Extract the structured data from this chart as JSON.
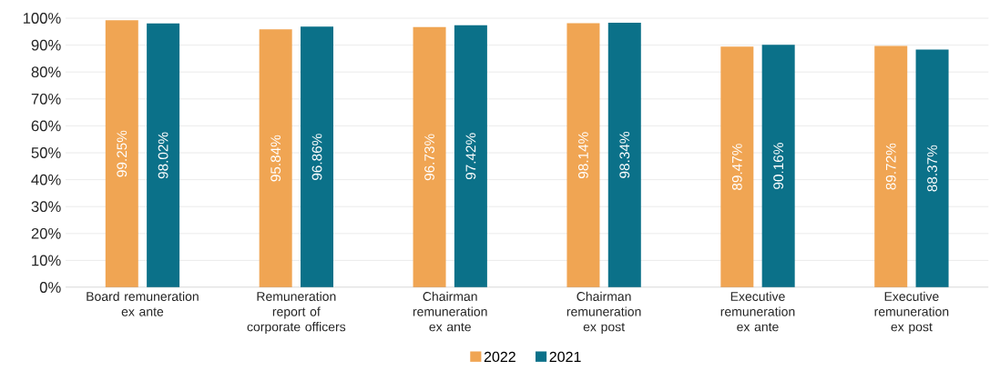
{
  "chart_data": {
    "type": "bar",
    "categories": [
      "Board remuneration ex ante",
      "Remuneration report of corporate officers",
      "Chairman remuneration ex ante",
      "Chairman remuneration ex post",
      "Executive remuneration ex ante",
      "Executive remuneration ex post"
    ],
    "series": [
      {
        "name": "2022",
        "color": "#f0a553",
        "values": [
          99.25,
          95.84,
          96.73,
          98.14,
          89.47,
          89.72
        ],
        "value_labels": [
          "99.25%",
          "95.84%",
          "96.73%",
          "98.14%",
          "89.47%",
          "89.72%"
        ]
      },
      {
        "name": "2021",
        "color": "#0b7189",
        "values": [
          98.02,
          96.86,
          97.42,
          98.34,
          90.16,
          88.37
        ],
        "value_labels": [
          "98.02%",
          "96.86%",
          "97.42%",
          "98.34%",
          "90.16%",
          "88.37%"
        ]
      }
    ],
    "ylim": [
      0,
      100
    ],
    "yticks": [
      {
        "value": 0,
        "label": "0%"
      },
      {
        "value": 10,
        "label": "10%"
      },
      {
        "value": 20,
        "label": "20%"
      },
      {
        "value": 30,
        "label": "30%"
      },
      {
        "value": 40,
        "label": "40%"
      },
      {
        "value": 50,
        "label": "50%"
      },
      {
        "value": 60,
        "label": "60%"
      },
      {
        "value": 70,
        "label": "70%"
      },
      {
        "value": 80,
        "label": "80%"
      },
      {
        "value": 90,
        "label": "90%"
      },
      {
        "value": 100,
        "label": "100%"
      }
    ],
    "grid": "y",
    "legend": "bottom"
  }
}
